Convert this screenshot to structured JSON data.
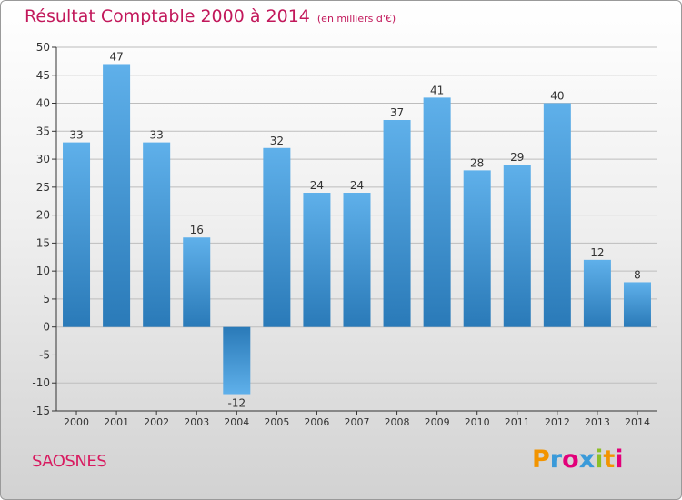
{
  "header": {
    "title": "Résultat Comptable 2000 à 2014",
    "subtitle": "(en milliers d'€)"
  },
  "footer": {
    "commune": "SAOSNES",
    "brand": [
      "P",
      "r",
      "o",
      "x",
      "i",
      "t",
      "i"
    ],
    "brand_colors": [
      "#f29400",
      "#3a9ad9",
      "#e2007a",
      "#3a9ad9",
      "#8cbf26",
      "#f29400",
      "#e2007a"
    ]
  },
  "colors": {
    "bar_top": "#5fb0ea",
    "bar_bottom": "#2a7ab8",
    "grid": "#bdbdbd",
    "axis": "#333333",
    "label": "#333333"
  },
  "chart_data": {
    "type": "bar",
    "title": "Résultat Comptable 2000 à 2014",
    "categories": [
      "2000",
      "2001",
      "2002",
      "2003",
      "2004",
      "2005",
      "2006",
      "2007",
      "2008",
      "2009",
      "2010",
      "2011",
      "2012",
      "2013",
      "2014"
    ],
    "values": [
      33,
      47,
      33,
      16,
      -12,
      32,
      24,
      24,
      37,
      41,
      28,
      29,
      40,
      12,
      8
    ],
    "ylim": [
      -15,
      50
    ],
    "yticks": [
      -15,
      -10,
      -5,
      0,
      5,
      10,
      15,
      20,
      25,
      30,
      35,
      40,
      45,
      50
    ],
    "grid": true,
    "xlabel": "",
    "ylabel": ""
  }
}
